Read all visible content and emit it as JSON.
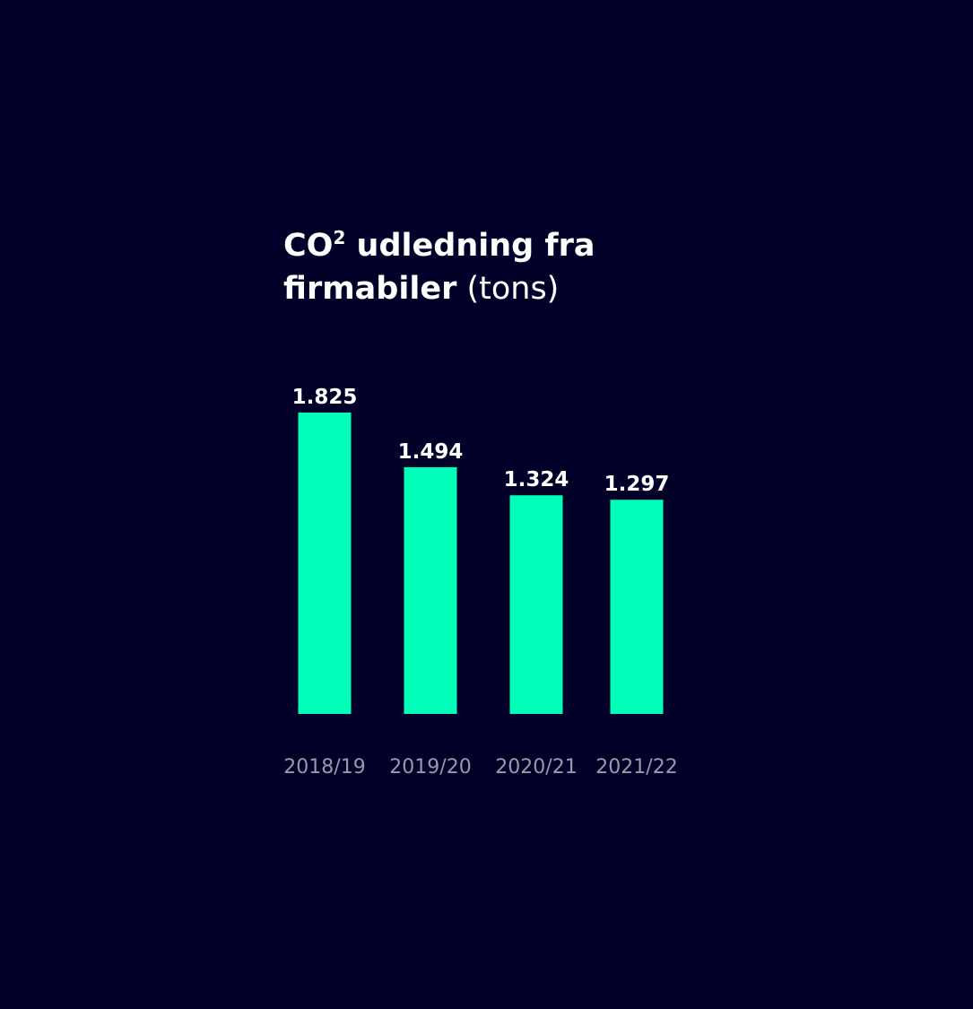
{
  "chart_data": {
    "type": "bar",
    "title_line1_bold": "CO",
    "title_sup": "2",
    "title_line1_rest": " udledning fra",
    "title_line2_bold": "firmabiler",
    "title_line2_unit": " (tons)",
    "categories": [
      "2018/19",
      "2019/20",
      "2020/21",
      "2021/22"
    ],
    "values": [
      1825,
      1494,
      1324,
      1297
    ],
    "value_labels": [
      "1.825",
      "1.494",
      "1.324",
      "1.297"
    ],
    "ylim": [
      0,
      1825
    ],
    "grid": false,
    "bar_color": "#00ffb9",
    "background_color": "#000028",
    "value_label_color": "#ffffff",
    "category_label_color": "#9999a9"
  }
}
